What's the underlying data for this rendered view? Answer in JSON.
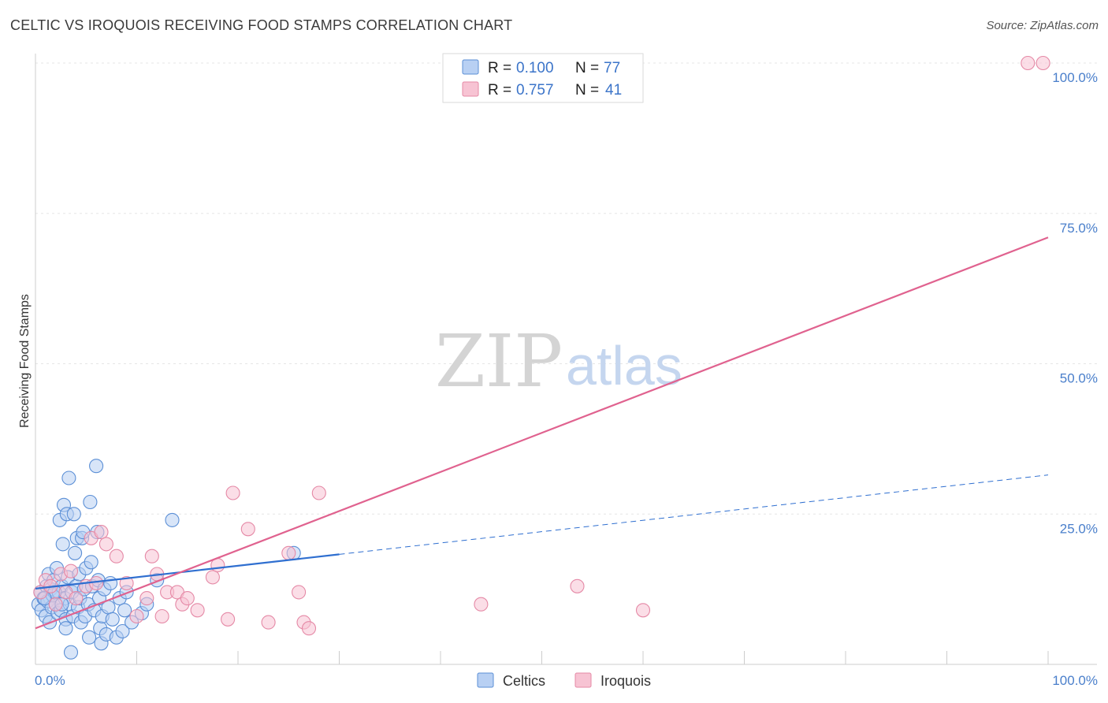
{
  "header": {
    "title": "CELTIC VS IROQUOIS RECEIVING FOOD STAMPS CORRELATION CHART",
    "source": "Source: ZipAtlas.com"
  },
  "watermark": {
    "part1": "ZIP",
    "part2": "atlas"
  },
  "chart_data": {
    "type": "scatter",
    "title": "CELTIC VS IROQUOIS RECEIVING FOOD STAMPS CORRELATION CHART",
    "xlabel": "",
    "ylabel": "Receiving Food Stamps",
    "xlim": [
      0,
      100
    ],
    "ylim": [
      0,
      100
    ],
    "x_tick_labels": [
      "0.0%",
      "100.0%"
    ],
    "y_tick_labels": [
      "25.0%",
      "50.0%",
      "75.0%",
      "100.0%"
    ],
    "y_ticks": [
      25,
      50,
      75,
      100
    ],
    "grid": true,
    "legend_position": "top-center",
    "legend": [
      {
        "name": "Celtics",
        "r_label": "R =",
        "r_value": "0.100",
        "n_label": "N =",
        "n_value": "77",
        "color": "#5b8fd6",
        "fill": "#b8d0f3"
      },
      {
        "name": "Iroquois",
        "r_label": "R =",
        "r_value": "0.757",
        "n_label": "N =",
        "n_value": "41",
        "color": "#e589a6",
        "fill": "#f7c3d3"
      }
    ],
    "series": [
      {
        "name": "Celtics",
        "color": "#5b8fd6",
        "trend": {
          "x0": 0,
          "y0": 12.6,
          "x1": 30,
          "y1": 18.3,
          "dash_to": 100,
          "dash_y": 31.5,
          "color": "#2f6fd0"
        },
        "points": [
          [
            0.3,
            10
          ],
          [
            0.5,
            12
          ],
          [
            0.6,
            9
          ],
          [
            0.8,
            11
          ],
          [
            1.0,
            8
          ],
          [
            1.1,
            13
          ],
          [
            1.2,
            10.5
          ],
          [
            1.3,
            15
          ],
          [
            1.4,
            7
          ],
          [
            1.5,
            12.5
          ],
          [
            1.6,
            9.5
          ],
          [
            1.7,
            11.5
          ],
          [
            1.8,
            14
          ],
          [
            2.0,
            10
          ],
          [
            2.1,
            16
          ],
          [
            2.2,
            8.5
          ],
          [
            2.3,
            12
          ],
          [
            2.4,
            24
          ],
          [
            2.5,
            9
          ],
          [
            2.6,
            13
          ],
          [
            2.7,
            20
          ],
          [
            2.8,
            26.5
          ],
          [
            2.9,
            11
          ],
          [
            3.0,
            7.5
          ],
          [
            3.1,
            25
          ],
          [
            3.2,
            14.5
          ],
          [
            3.3,
            31
          ],
          [
            3.4,
            10
          ],
          [
            3.5,
            2
          ],
          [
            3.6,
            12
          ],
          [
            3.7,
            8
          ],
          [
            3.8,
            25
          ],
          [
            3.9,
            18.5
          ],
          [
            4.0,
            13
          ],
          [
            4.1,
            21
          ],
          [
            4.2,
            9.5
          ],
          [
            4.3,
            15
          ],
          [
            4.4,
            11
          ],
          [
            4.5,
            7
          ],
          [
            4.6,
            21
          ],
          [
            4.7,
            22
          ],
          [
            4.8,
            12.5
          ],
          [
            4.9,
            8
          ],
          [
            5.0,
            16
          ],
          [
            5.2,
            10
          ],
          [
            5.3,
            4.5
          ],
          [
            5.4,
            27
          ],
          [
            5.5,
            17
          ],
          [
            5.6,
            13
          ],
          [
            5.8,
            9
          ],
          [
            6.0,
            33
          ],
          [
            6.1,
            22
          ],
          [
            6.2,
            14
          ],
          [
            6.3,
            11
          ],
          [
            6.4,
            6
          ],
          [
            6.5,
            3.5
          ],
          [
            6.6,
            8
          ],
          [
            6.8,
            12.5
          ],
          [
            7.0,
            5
          ],
          [
            7.2,
            9.5
          ],
          [
            7.4,
            13.5
          ],
          [
            7.6,
            7.5
          ],
          [
            8.0,
            4.5
          ],
          [
            8.3,
            11
          ],
          [
            8.6,
            5.5
          ],
          [
            9.0,
            12
          ],
          [
            9.5,
            7
          ],
          [
            10.5,
            8.5
          ],
          [
            11.0,
            10
          ],
          [
            12.0,
            14
          ],
          [
            8.8,
            9
          ],
          [
            13.5,
            24
          ],
          [
            1.9,
            12
          ],
          [
            0.9,
            11
          ],
          [
            2.6,
            10
          ],
          [
            25.5,
            18.5
          ],
          [
            3.0,
            6
          ]
        ]
      },
      {
        "name": "Iroquois",
        "color": "#e589a6",
        "trend": {
          "x0": 0,
          "y0": 6,
          "x1": 100,
          "y1": 71,
          "color": "#e0628f"
        },
        "points": [
          [
            0.5,
            12
          ],
          [
            1.0,
            14
          ],
          [
            1.5,
            13
          ],
          [
            2.0,
            10
          ],
          [
            2.5,
            15
          ],
          [
            3.0,
            12
          ],
          [
            3.5,
            15.5
          ],
          [
            4.0,
            11
          ],
          [
            5.0,
            13
          ],
          [
            5.5,
            21
          ],
          [
            6.0,
            13.5
          ],
          [
            6.5,
            22
          ],
          [
            7.0,
            20
          ],
          [
            8.0,
            18
          ],
          [
            9.0,
            13.5
          ],
          [
            10.0,
            8
          ],
          [
            11.0,
            11
          ],
          [
            11.5,
            18
          ],
          [
            12.0,
            15
          ],
          [
            12.5,
            8
          ],
          [
            13.0,
            12
          ],
          [
            14.0,
            12
          ],
          [
            14.5,
            10
          ],
          [
            15.0,
            11
          ],
          [
            16.0,
            9
          ],
          [
            17.5,
            14.5
          ],
          [
            18.0,
            16.5
          ],
          [
            19.0,
            7.5
          ],
          [
            19.5,
            28.5
          ],
          [
            21.0,
            22.5
          ],
          [
            25.0,
            18.5
          ],
          [
            23.0,
            7
          ],
          [
            26.0,
            12
          ],
          [
            26.5,
            7
          ],
          [
            27.0,
            6
          ],
          [
            28.0,
            28.5
          ],
          [
            44.0,
            10
          ],
          [
            53.5,
            13
          ],
          [
            60.0,
            9
          ],
          [
            98.0,
            100
          ],
          [
            99.5,
            100
          ]
        ]
      }
    ]
  }
}
